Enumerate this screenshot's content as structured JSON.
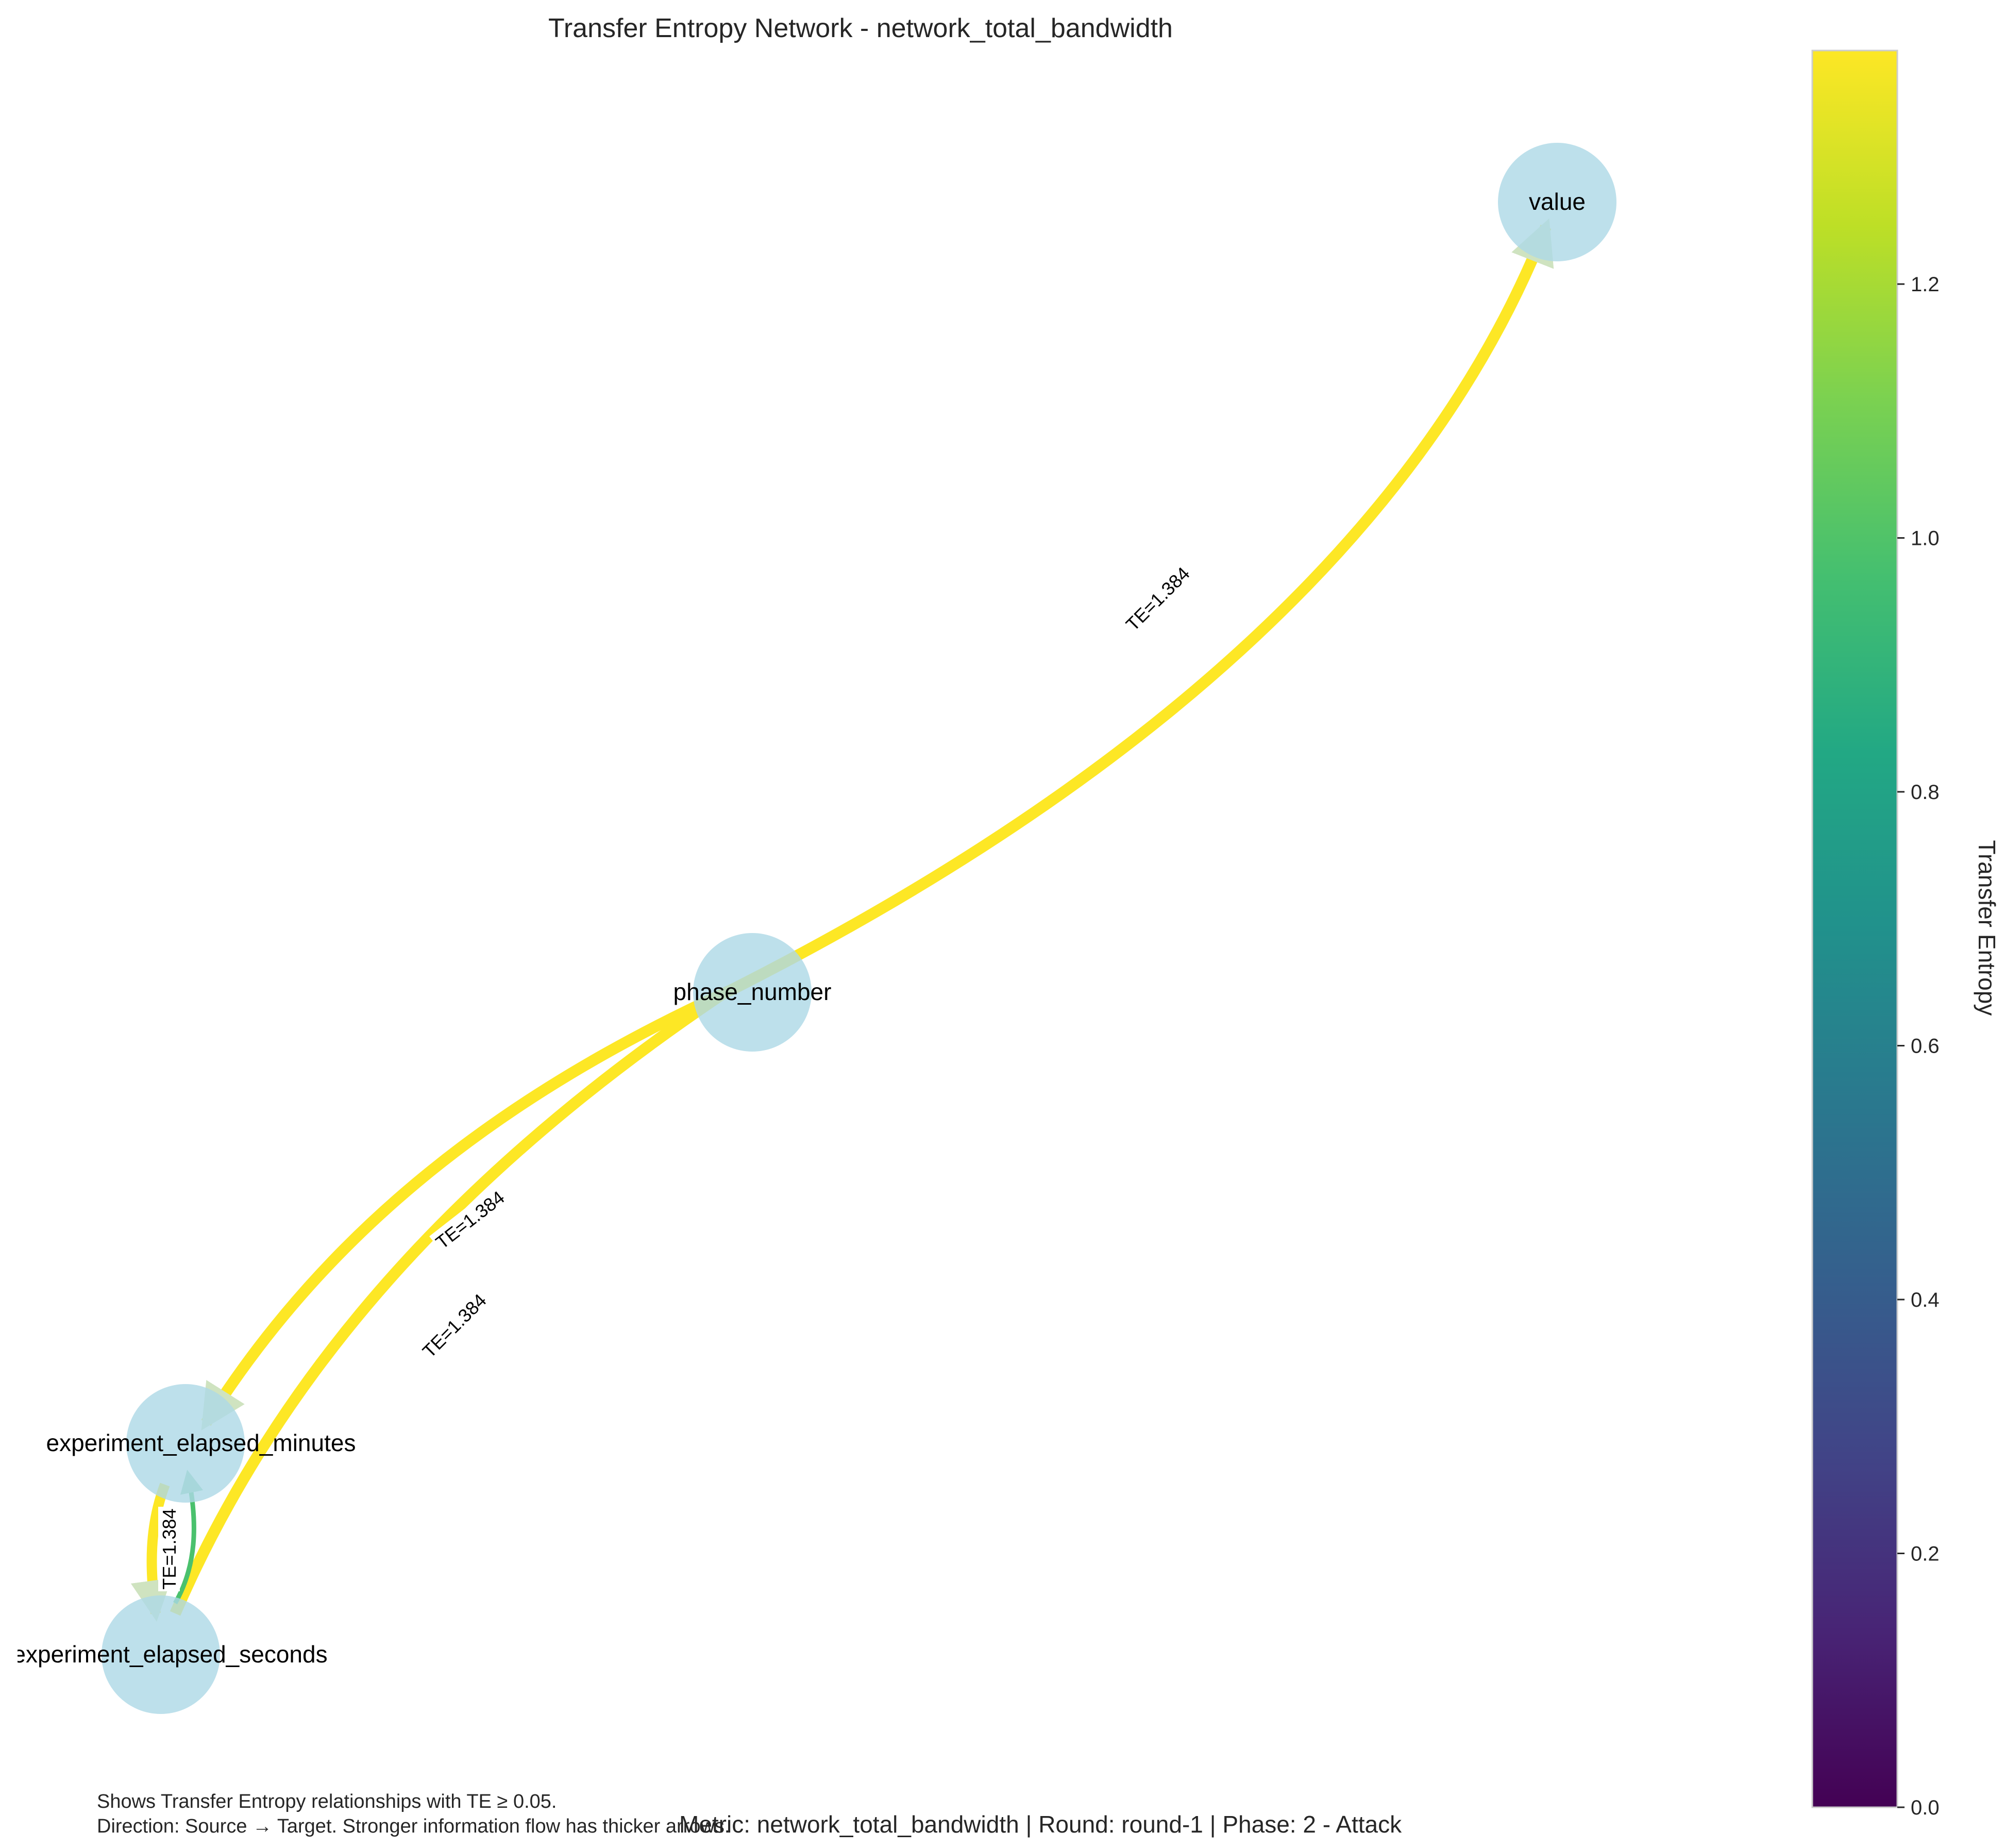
{
  "title": "Transfer Entropy Network - network_total_bandwidth",
  "nodes": [
    {
      "id": "value",
      "label": "value"
    },
    {
      "id": "phase_number",
      "label": "phase_number"
    },
    {
      "id": "experiment_elapsed_minutes",
      "label": "experiment_elapsed_minutes"
    },
    {
      "id": "experiment_elapsed_seconds",
      "label": "experiment_elapsed_seconds"
    }
  ],
  "edges": [
    {
      "source": "phase_number",
      "target": "value",
      "te": 1.384,
      "label": "TE=1.384",
      "color": "#fde725"
    },
    {
      "source": "phase_number",
      "target": "experiment_elapsed_minutes",
      "te": 1.384,
      "label": "TE=1.384",
      "color": "#fde725"
    },
    {
      "source": "experiment_elapsed_seconds",
      "target": "phase_number",
      "te": 1.384,
      "label": "TE=1.384",
      "color": "#fde725"
    },
    {
      "source": "experiment_elapsed_minutes",
      "target": "experiment_elapsed_seconds",
      "te": 1.384,
      "label": "TE=1.384",
      "color": "#fde725"
    },
    {
      "source": "experiment_elapsed_seconds",
      "target": "experiment_elapsed_minutes",
      "te": 1.0,
      "label": "",
      "color": "#4ac16d"
    }
  ],
  "colorbar": {
    "label": "Transfer Entropy",
    "colormap": "viridis",
    "min": 0.0,
    "max": 1.384,
    "ticks": [
      "0.0",
      "0.2",
      "0.4",
      "0.6",
      "0.8",
      "1.0",
      "1.2"
    ],
    "tick_values": [
      0.0,
      0.2,
      0.4,
      0.6,
      0.8,
      1.0,
      1.2
    ]
  },
  "footer": {
    "line1": "Shows Transfer Entropy relationships with TE ≥ 0.05.",
    "line2": "Direction: Source → Target. Stronger information flow has thicker arrows."
  },
  "metadata": "Metric: network_total_bandwidth | Round: round-1 | Phase: 2 - Attack",
  "colors": {
    "node_fill": "#add8e6",
    "edge_strong": "#fde725",
    "edge_medium": "#4ac16d"
  }
}
